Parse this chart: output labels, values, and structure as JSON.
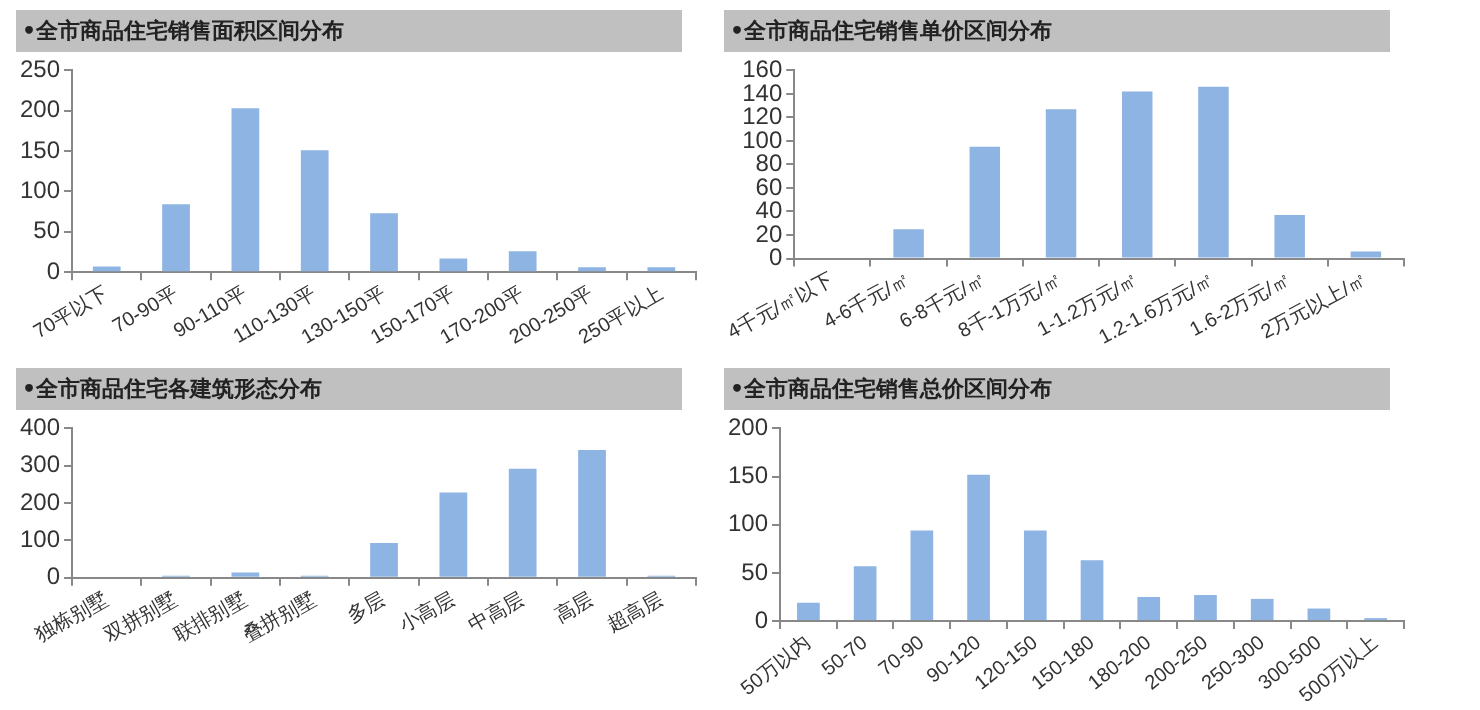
{
  "chart_data": [
    {
      "type": "bar",
      "title": "•全市商品住宅销售面积区间分布",
      "categories": [
        "70平以下",
        "70-90平",
        "90-110平",
        "110-130平",
        "130-150平",
        "150-170平",
        "170-200平",
        "200-250平",
        "250平以上"
      ],
      "values": [
        7,
        84,
        203,
        151,
        73,
        17,
        26,
        6,
        6
      ],
      "color": "#8db4e2",
      "ylim": [
        0,
        250
      ],
      "yticks": [
        0,
        50,
        100,
        150,
        200,
        250
      ],
      "grid": false
    },
    {
      "type": "bar",
      "title": "•全市商品住宅销售单价区间分布",
      "categories": [
        "4千元/㎡以下",
        "4-6千元/㎡",
        "6-8千元/㎡",
        "8千-1万元/㎡",
        "1-1.2万元/㎡",
        "1.2-1.6万元/㎡",
        "1.6-2万元/㎡",
        "2万元以上/㎡"
      ],
      "values": [
        0,
        25,
        95,
        127,
        142,
        146,
        37,
        6
      ],
      "color": "#8db4e2",
      "ylim": [
        0,
        160
      ],
      "yticks": [
        0,
        20,
        40,
        60,
        80,
        100,
        120,
        140,
        160
      ],
      "grid": false
    },
    {
      "type": "bar",
      "title": "•全市商品住宅各建筑形态分布",
      "categories": [
        "独栋别墅",
        "双拼别墅",
        "联排别墅",
        "叠拼别墅",
        "多层",
        "小高层",
        "中高层",
        "高层",
        "超高层"
      ],
      "values": [
        0,
        5,
        14,
        5,
        93,
        228,
        292,
        342,
        5
      ],
      "color": "#8db4e2",
      "ylim": [
        0,
        400
      ],
      "yticks": [
        0,
        100,
        200,
        300,
        400
      ],
      "grid": false
    },
    {
      "type": "bar",
      "title": "•全市商品住宅销售总价区间分布",
      "categories": [
        "50万以内",
        "50-70",
        "70-90",
        "90-120",
        "120-150",
        "150-180",
        "180-200",
        "200-250",
        "250-300",
        "300-500",
        "500万以上"
      ],
      "values": [
        19,
        57,
        94,
        152,
        94,
        63,
        25,
        27,
        23,
        13,
        3
      ],
      "color": "#8db4e2",
      "ylim": [
        0,
        200
      ],
      "yticks": [
        0,
        50,
        100,
        150,
        200
      ],
      "grid": false
    }
  ]
}
